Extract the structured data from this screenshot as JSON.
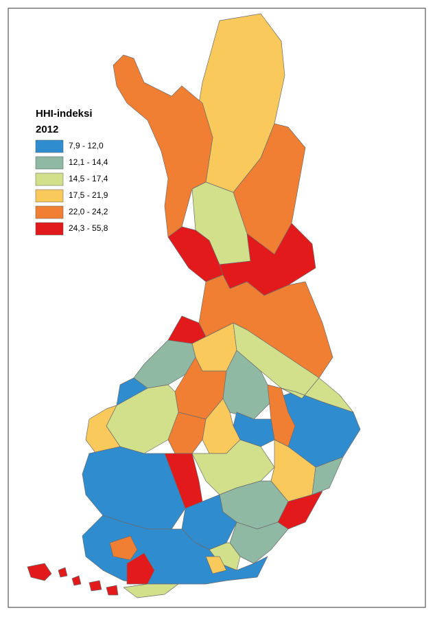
{
  "legend": {
    "title": "HHI-indeksi",
    "year": "2012",
    "items": [
      {
        "label": "7,9 - 12,0",
        "color": "#2e8ccf"
      },
      {
        "label": "12,1 - 14,4",
        "color": "#8fb9a3"
      },
      {
        "label": "14,5 - 17,4",
        "color": "#d3e08b"
      },
      {
        "label": "17,5 - 21,9",
        "color": "#f9c95b"
      },
      {
        "label": "22,0 - 24,2",
        "color": "#f07f33"
      },
      {
        "label": "24,3 - 55,8",
        "color": "#e31a1c"
      }
    ]
  }
}
